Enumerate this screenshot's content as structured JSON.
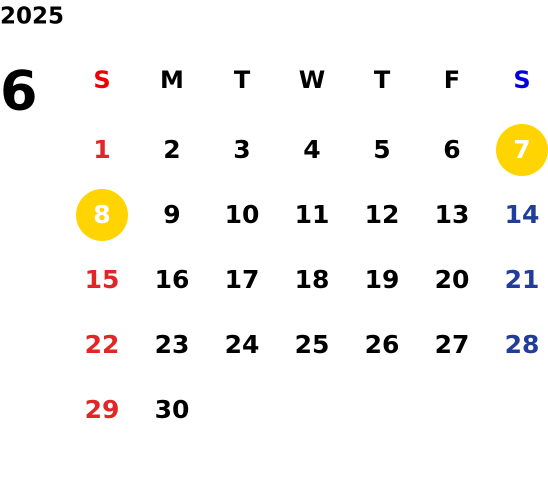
{
  "year": "2025",
  "month": "6",
  "weekdays": [
    "S",
    "M",
    "T",
    "W",
    "T",
    "F",
    "S"
  ],
  "weeks": [
    [
      null,
      null,
      null,
      null,
      null,
      null,
      7
    ],
    [
      8,
      9,
      10,
      11,
      12,
      13,
      14
    ],
    [
      15,
      16,
      17,
      18,
      19,
      20,
      21
    ],
    [
      22,
      23,
      24,
      25,
      26,
      27,
      28
    ],
    [
      29,
      30,
      null,
      null,
      null,
      null,
      null
    ]
  ],
  "first_week_days": [
    1,
    2,
    3,
    4,
    5,
    6
  ],
  "highlighted_days": [
    7,
    8
  ],
  "colors": {
    "sunday_header": "#ee0000",
    "saturday_header": "#0000dd",
    "sunday": "#e02626",
    "saturday": "#1f3d99",
    "weekday": "#000000",
    "highlight": "#ffd400",
    "highlight_text": "#ffffff"
  }
}
